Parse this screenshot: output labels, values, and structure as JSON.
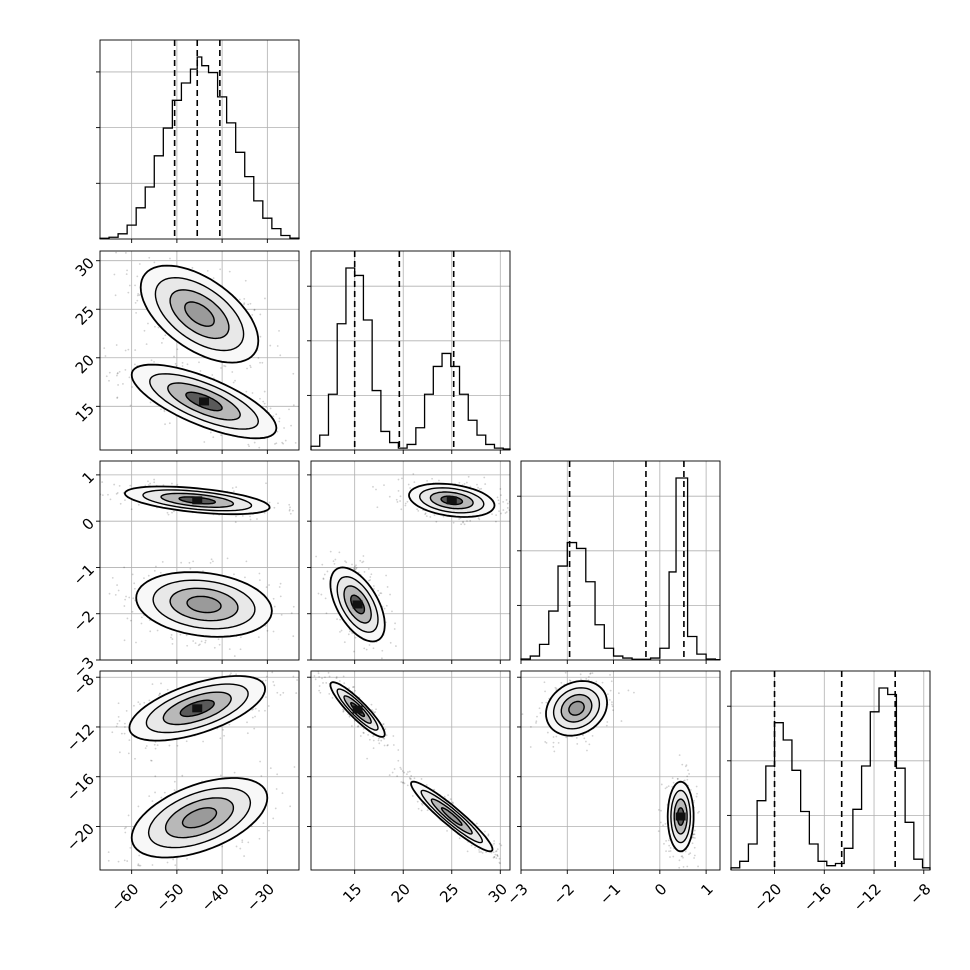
{
  "chart_data": {
    "type": "corner",
    "title": "",
    "ranges": [
      [
        -67,
        -23
      ],
      [
        10.5,
        31
      ],
      [
        -3,
        1.3
      ],
      [
        -23.5,
        -7.5
      ]
    ],
    "ticks": [
      [
        -60,
        -50,
        -40,
        -30
      ],
      [
        15,
        20,
        25,
        30
      ],
      [
        -3,
        -2,
        -1,
        0,
        1
      ],
      [
        -20,
        -16,
        -12,
        -8
      ]
    ],
    "tick_labels": [
      [
        "−60",
        "−50",
        "−40",
        "−30"
      ],
      [
        "15",
        "20",
        "25",
        "30"
      ],
      [
        "−3",
        "−2",
        "−1",
        "0",
        "1"
      ],
      [
        "−20",
        "−16",
        "−12",
        "−8"
      ]
    ],
    "quantiles": [
      [
        -50.5,
        -45.5,
        -40.5
      ],
      [
        15.0,
        19.6,
        25.2
      ],
      [
        -1.95,
        -0.3,
        0.52
      ],
      [
        -20.0,
        -14.6,
        -10.3
      ]
    ],
    "histograms": [
      {
        "param": 0,
        "bins": [
          -67,
          -65,
          -63,
          -61,
          -59,
          -57,
          -55,
          -53,
          -51,
          -49,
          -47,
          -45.5,
          -44.5,
          -43,
          -41,
          -39,
          -37,
          -35,
          -33,
          -31,
          -29,
          -27,
          -25,
          -23
        ],
        "counts": [
          0.4,
          1,
          3,
          8,
          18,
          30,
          48,
          64,
          80,
          90,
          98,
          105,
          100,
          96,
          82,
          67,
          50,
          36,
          22,
          12,
          6,
          2,
          0.5
        ]
      },
      {
        "param": 1,
        "bins": [
          10.5,
          11.4,
          12.3,
          13.2,
          14.1,
          15,
          15.9,
          16.8,
          17.7,
          18.6,
          19.5,
          20.4,
          21.3,
          22.2,
          23.1,
          24,
          24.9,
          25.8,
          26.7,
          27.6,
          28.5,
          29.4,
          30.3,
          31
        ],
        "counts": [
          2,
          8,
          30,
          68,
          98,
          94,
          70,
          32,
          10,
          4,
          1,
          3,
          12,
          30,
          45,
          52,
          45,
          30,
          16,
          8,
          3,
          1,
          0.5
        ]
      },
      {
        "param": 2,
        "bins": [
          -3,
          -2.8,
          -2.6,
          -2.4,
          -2.2,
          -2.0,
          -1.8,
          -1.6,
          -1.4,
          -1.2,
          -1.0,
          -0.8,
          -0.6,
          -0.4,
          -0.2,
          0.0,
          0.2,
          0.35,
          0.6,
          0.8,
          1.0,
          1.2,
          1.3
        ],
        "counts": [
          0.5,
          2,
          8,
          25,
          48,
          60,
          57,
          40,
          18,
          6,
          2,
          1,
          0.4,
          0.4,
          1,
          6,
          45,
          93,
          12,
          3,
          0.5,
          0.2
        ]
      },
      {
        "param": 3,
        "bins": [
          -23.5,
          -22.8,
          -22.1,
          -21.4,
          -20.7,
          -20,
          -19.3,
          -18.6,
          -17.9,
          -17.2,
          -16.5,
          -15.8,
          -15.1,
          -14.4,
          -13.7,
          -13,
          -12.3,
          -11.6,
          -10.9,
          -10.2,
          -9.5,
          -8.8,
          -8.1,
          -7.5
        ],
        "counts": [
          1,
          4,
          12,
          32,
          48,
          68,
          60,
          46,
          27,
          12,
          4,
          2,
          3,
          10,
          28,
          48,
          73,
          84,
          81,
          47,
          22,
          5,
          1
        ]
      }
    ],
    "pairs": [
      {
        "x_param": 0,
        "y_param": 1,
        "modes": [
          {
            "center": [
              -45,
              24.5
            ],
            "sx": 6.5,
            "sy": 2.5,
            "rho": -0.55,
            "dark": 0.45
          },
          {
            "center": [
              -44,
              15.5
            ],
            "sx": 8,
            "sy": 1.9,
            "rho": -0.72,
            "dark": 0.95
          }
        ]
      },
      {
        "x_param": 0,
        "y_param": 2,
        "modes": [
          {
            "center": [
              -45.5,
              0.45
            ],
            "sx": 8,
            "sy": 0.15,
            "rho": -0.5,
            "dark": 0.95
          },
          {
            "center": [
              -44,
              -1.8
            ],
            "sx": 7.5,
            "sy": 0.35,
            "rho": -0.2,
            "dark": 0.4
          }
        ]
      },
      {
        "x_param": 0,
        "y_param": 3,
        "modes": [
          {
            "center": [
              -45.5,
              -10.5
            ],
            "sx": 7.5,
            "sy": 1.3,
            "rho": 0.6,
            "dark": 0.95
          },
          {
            "center": [
              -45,
              -19.3
            ],
            "sx": 7.5,
            "sy": 1.6,
            "rho": 0.5,
            "dark": 0.5
          }
        ]
      },
      {
        "x_param": 1,
        "y_param": 2,
        "modes": [
          {
            "center": [
              25,
              0.45
            ],
            "sx": 2.2,
            "sy": 0.18,
            "rho": -0.3,
            "dark": 0.95
          },
          {
            "center": [
              15.3,
              -1.8
            ],
            "sx": 1.4,
            "sy": 0.4,
            "rho": -0.55,
            "dark": 0.85
          }
        ]
      },
      {
        "x_param": 1,
        "y_param": 3,
        "modes": [
          {
            "center": [
              15.3,
              -10.6
            ],
            "sx": 1.4,
            "sy": 1.1,
            "rho": -0.9,
            "dark": 0.95
          },
          {
            "center": [
              25,
              -19.2
            ],
            "sx": 2.1,
            "sy": 1.4,
            "rho": -0.94,
            "dark": 0.6
          }
        ]
      },
      {
        "x_param": 2,
        "y_param": 3,
        "modes": [
          {
            "center": [
              -1.8,
              -10.5
            ],
            "sx": 0.33,
            "sy": 1.1,
            "rho": 0.2,
            "dark": 0.75
          },
          {
            "center": [
              0.45,
              -19.2
            ],
            "sx": 0.14,
            "sy": 1.4,
            "rho": 0.0,
            "dark": 0.95
          }
        ]
      }
    ],
    "grid": true,
    "legend": "none"
  }
}
